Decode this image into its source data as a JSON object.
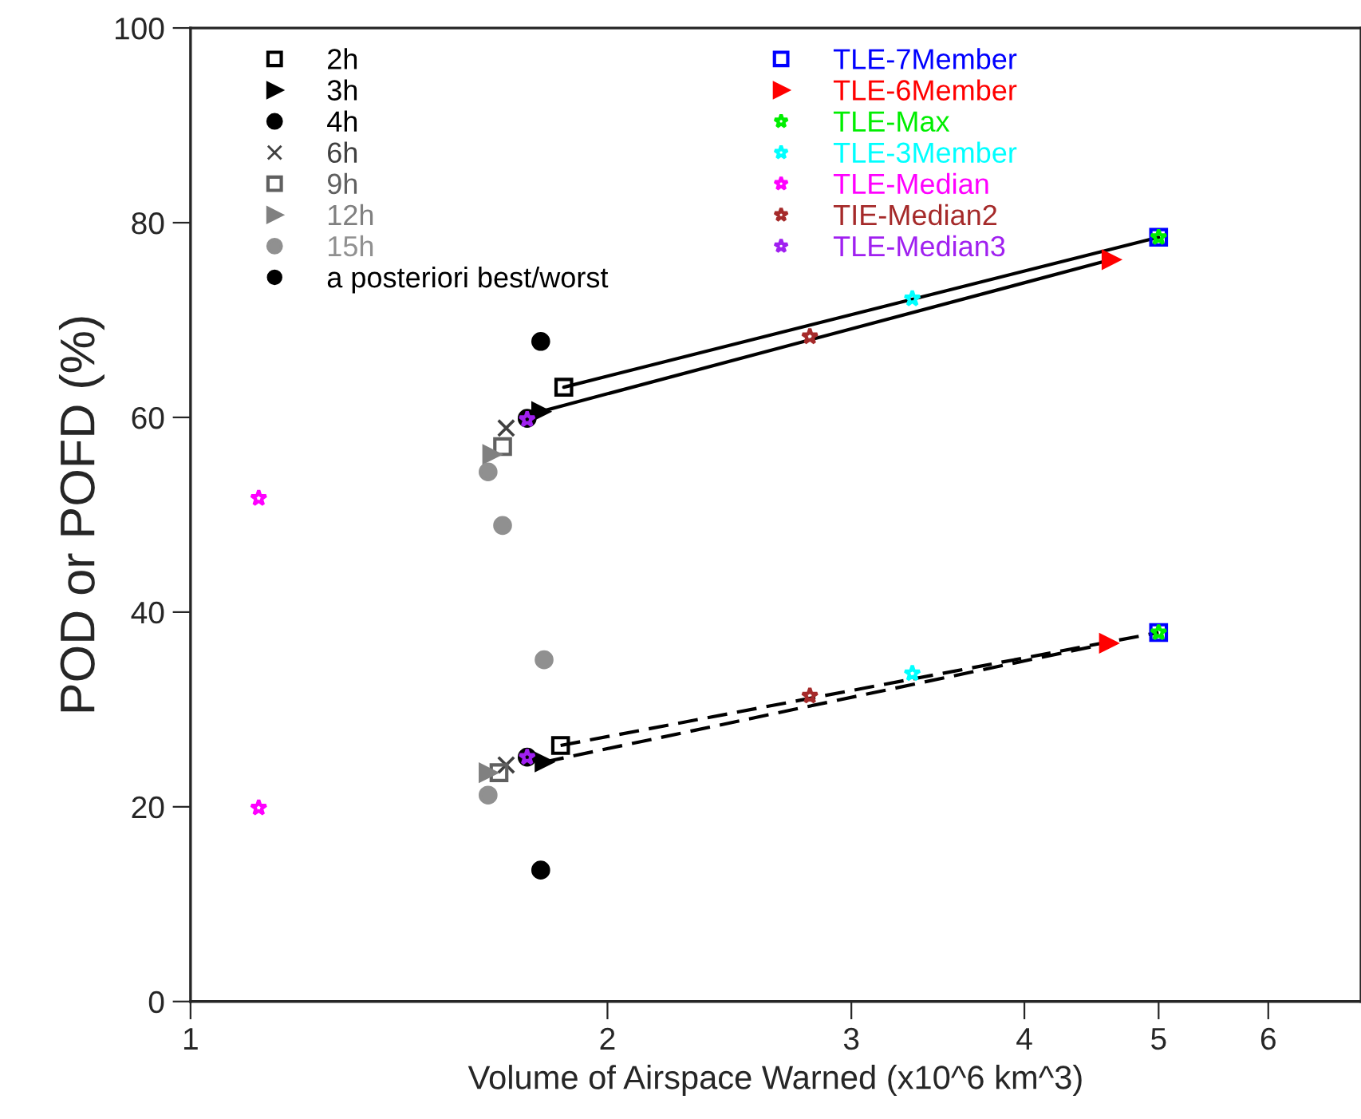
{
  "chart_data": {
    "type": "scatter",
    "xlabel": "Volume of Airspace Warned (x10^6 km^3)",
    "ylabel": "POD or POFD (%)",
    "log": "x",
    "xlim": [
      1,
      7
    ],
    "xticks": [
      1,
      2,
      3,
      4,
      5,
      6
    ],
    "ylim": [
      0,
      100
    ],
    "yticks": [
      0,
      20,
      40,
      60,
      80,
      100
    ],
    "grid": false,
    "legend": "top left",
    "series": [
      {
        "type": "line",
        "color": "#000000",
        "line_style": "solid",
        "marker": "none",
        "x": [
          1.86,
          5.0
        ],
        "values": [
          63.1,
          78.5
        ]
      },
      {
        "type": "line",
        "color": "#000000",
        "line_style": "solid",
        "marker": "none",
        "x": [
          1.79,
          4.62
        ],
        "values": [
          60.6,
          76.2
        ]
      },
      {
        "type": "line",
        "color": "#000000",
        "line_style": "dashed",
        "marker": "none",
        "x": [
          1.85,
          5.0
        ],
        "values": [
          26.3,
          37.9
        ]
      },
      {
        "type": "line",
        "color": "#000000",
        "line_style": "dashed",
        "marker": "none",
        "x": [
          1.8,
          4.6
        ],
        "values": [
          24.6,
          36.8
        ]
      },
      {
        "name": "2h",
        "color": "#000000",
        "marker": "square",
        "x": [
          1.86,
          1.85
        ],
        "values": [
          63.1,
          26.3
        ]
      },
      {
        "name": "3h",
        "color": "#000000",
        "marker": "triangle",
        "x": [
          1.79,
          1.8
        ],
        "values": [
          60.6,
          24.6
        ]
      },
      {
        "name": "4h",
        "color": "#000000",
        "marker": "circle",
        "x": [
          1.75,
          1.75
        ],
        "values": [
          59.9,
          25.1
        ]
      },
      {
        "name": "6h",
        "color": "#404040",
        "marker": "cross",
        "x": [
          1.69,
          1.69
        ],
        "values": [
          58.9,
          24.3
        ]
      },
      {
        "name": "9h",
        "color": "#606060",
        "marker": "square",
        "x": [
          1.68,
          1.67
        ],
        "values": [
          57.0,
          23.5
        ]
      },
      {
        "name": "12h",
        "color": "#808080",
        "marker": "triangle",
        "x": [
          1.65,
          1.64
        ],
        "values": [
          56.2,
          23.5
        ]
      },
      {
        "name": "15h",
        "color": "#909090",
        "marker": "circle",
        "x": [
          1.64,
          1.64
        ],
        "values": [
          54.4,
          21.2
        ]
      },
      {
        "name": "a posteriori best/worst",
        "color": "#000000",
        "colors": [
          "#000000",
          "#909090",
          "#000000",
          "#909090"
        ],
        "marker": "circle",
        "x": [
          1.79,
          1.68,
          1.79,
          1.8
        ],
        "values": [
          67.8,
          48.9,
          13.5,
          35.1
        ]
      },
      {
        "name": "TLE-7Member",
        "color": "#0000ff",
        "marker": "square",
        "x": [
          5.0,
          5.0
        ],
        "values": [
          78.5,
          37.9
        ]
      },
      {
        "name": "TLE-6Member",
        "color": "#ff0000",
        "marker": "triangle",
        "x": [
          4.62,
          4.6
        ],
        "values": [
          76.2,
          36.8
        ]
      },
      {
        "name": "TLE-Max",
        "color": "#00ee00",
        "marker": "star",
        "x": [
          5.0,
          5.0
        ],
        "values": [
          78.5,
          37.9
        ]
      },
      {
        "name": "TLE-3Member",
        "color": "#00ffff",
        "marker": "star",
        "x": [
          3.32,
          3.32
        ],
        "values": [
          72.2,
          33.7
        ]
      },
      {
        "name": "TLE-Median",
        "color": "#ff00ff",
        "marker": "star",
        "x": [
          1.12,
          1.12
        ],
        "values": [
          51.7,
          19.9
        ]
      },
      {
        "name": "TIE-Median2",
        "color": "#a52a2a",
        "marker": "star",
        "x": [
          2.8,
          2.8
        ],
        "values": [
          68.3,
          31.4
        ]
      },
      {
        "name": "TLE-Median3",
        "color": "#a020f0",
        "marker": "star",
        "x": [
          1.75,
          1.75
        ],
        "values": [
          59.8,
          25.1
        ]
      }
    ]
  }
}
